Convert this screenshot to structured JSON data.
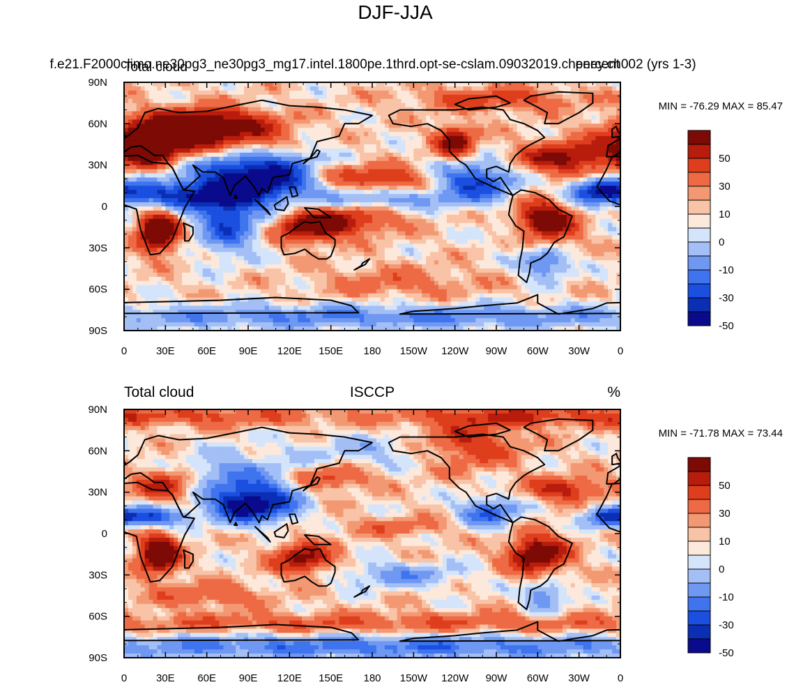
{
  "figure": {
    "title": "DJF-JJA"
  },
  "colors": {
    "palette": [
      "#0a0a8c",
      "#0a2fb4",
      "#1a4fe0",
      "#3f74ee",
      "#6f98f2",
      "#a3bff5",
      "#d4e4fa",
      "#fde9dc",
      "#f8c3a6",
      "#f29873",
      "#ed6a44",
      "#df3e1d",
      "#b81c0c",
      "#7d0a05"
    ],
    "land_outline": "#000000",
    "frame": "#000000"
  },
  "chart_data": [
    {
      "type": "heatmap",
      "id": "top",
      "title_center": "f.e21.F2000climo.ne30pg3_ne30pg3_mg17.intel.1800pe.1thrd.opt-se-cslam.09032019.cheney.ch002 (yrs 1-3)",
      "title_left": "Total cloud",
      "title_right": "percent",
      "stats_label": "MIN = -76.29 MAX =  85.47",
      "min": -76.29,
      "max": 85.47,
      "units": "%",
      "xlabel": "",
      "ylabel": "",
      "xlim": [
        0,
        360
      ],
      "ylim": [
        -90,
        90
      ],
      "x_ticks": [
        "0",
        "30E",
        "60E",
        "90E",
        "120E",
        "150E",
        "180",
        "150W",
        "120W",
        "90W",
        "60W",
        "30W",
        "0"
      ],
      "y_ticks": [
        "90N",
        "60N",
        "30N",
        "0",
        "30S",
        "60S",
        "90S"
      ],
      "levels": [
        -60,
        -50,
        -40,
        -30,
        -20,
        -10,
        -5,
        0,
        5,
        10,
        20,
        30,
        40,
        50,
        60
      ],
      "colorbar_labels": [
        "50",
        "30",
        "10",
        "0",
        "-10",
        "-30",
        "-50"
      ],
      "anomalies": [
        {
          "lon": 30,
          "lat": 50,
          "amp": 60,
          "sx": 28,
          "sy": 10
        },
        {
          "lon": 65,
          "lat": 60,
          "amp": 45,
          "sx": 30,
          "sy": 8
        },
        {
          "lon": 15,
          "lat": 40,
          "amp": 40,
          "sx": 12,
          "sy": 8
        },
        {
          "lon": 25,
          "lat": -18,
          "amp": 70,
          "sx": 10,
          "sy": 10
        },
        {
          "lon": 30,
          "lat": 8,
          "amp": -45,
          "sx": 40,
          "sy": 7
        },
        {
          "lon": 80,
          "lat": 18,
          "amp": -55,
          "sx": 25,
          "sy": 15
        },
        {
          "lon": 115,
          "lat": 25,
          "amp": -50,
          "sx": 22,
          "sy": 12
        },
        {
          "lon": 75,
          "lat": -15,
          "amp": -40,
          "sx": 15,
          "sy": 14
        },
        {
          "lon": 135,
          "lat": -15,
          "amp": 45,
          "sx": 18,
          "sy": 8
        },
        {
          "lon": 165,
          "lat": -10,
          "amp": 30,
          "sx": 25,
          "sy": 7
        },
        {
          "lon": 190,
          "lat": 20,
          "amp": 30,
          "sx": 22,
          "sy": 6
        },
        {
          "lon": 190,
          "lat": 5,
          "amp": -25,
          "sx": 35,
          "sy": 5
        },
        {
          "lon": 145,
          "lat": 25,
          "amp": 20,
          "sx": 20,
          "sy": 6
        },
        {
          "lon": 240,
          "lat": 47,
          "amp": 50,
          "sx": 10,
          "sy": 8
        },
        {
          "lon": 255,
          "lat": 18,
          "amp": -50,
          "sx": 20,
          "sy": 10
        },
        {
          "lon": 305,
          "lat": -12,
          "amp": 60,
          "sx": 15,
          "sy": 12
        },
        {
          "lon": 320,
          "lat": 35,
          "amp": 45,
          "sx": 25,
          "sy": 8
        },
        {
          "lon": 345,
          "lat": 12,
          "amp": -45,
          "sx": 15,
          "sy": 6
        },
        {
          "lon": 305,
          "lat": -40,
          "amp": -40,
          "sx": 12,
          "sy": 8
        },
        {
          "lon": 200,
          "lat": -55,
          "amp": 15,
          "sx": 40,
          "sy": 8
        },
        {
          "lon": 180,
          "lat": -80,
          "amp": -30,
          "sx": 200,
          "sy": 6
        },
        {
          "lon": 270,
          "lat": 78,
          "amp": 25,
          "sx": 40,
          "sy": 6
        },
        {
          "lon": 290,
          "lat": -20,
          "amp": -20,
          "sx": 15,
          "sy": 6
        },
        {
          "lon": 100,
          "lat": 45,
          "amp": 25,
          "sx": 20,
          "sy": 10
        }
      ]
    },
    {
      "type": "heatmap",
      "id": "bottom",
      "title_left": "Total cloud",
      "title_center": "ISCCP",
      "title_right": "%",
      "stats_label": "MIN = -71.78 MAX =  73.44",
      "min": -71.78,
      "max": 73.44,
      "units": "%",
      "xlabel": "",
      "ylabel": "",
      "xlim": [
        0,
        360
      ],
      "ylim": [
        -90,
        90
      ],
      "x_ticks": [
        "0",
        "30E",
        "60E",
        "90E",
        "120E",
        "150E",
        "180",
        "150W",
        "120W",
        "90W",
        "60W",
        "30W",
        "0"
      ],
      "y_ticks": [
        "90N",
        "60N",
        "30N",
        "0",
        "30S",
        "60S",
        "90S"
      ],
      "levels": [
        -60,
        -50,
        -40,
        -30,
        -20,
        -10,
        -5,
        0,
        5,
        10,
        20,
        30,
        40,
        50,
        60
      ],
      "colorbar_labels": [
        "50",
        "30",
        "10",
        "0",
        "-10",
        "-30",
        "-50"
      ],
      "anomalies": [
        {
          "lon": 25,
          "lat": -15,
          "amp": 65,
          "sx": 10,
          "sy": 10
        },
        {
          "lon": 85,
          "lat": 20,
          "amp": -60,
          "sx": 15,
          "sy": 8
        },
        {
          "lon": 80,
          "lat": 40,
          "amp": -30,
          "sx": 25,
          "sy": 12
        },
        {
          "lon": 20,
          "lat": 12,
          "amp": -45,
          "sx": 20,
          "sy": 5
        },
        {
          "lon": 30,
          "lat": 35,
          "amp": 35,
          "sx": 15,
          "sy": 8
        },
        {
          "lon": 130,
          "lat": -18,
          "amp": 45,
          "sx": 15,
          "sy": 8
        },
        {
          "lon": 110,
          "lat": 22,
          "amp": -35,
          "sx": 15,
          "sy": 10
        },
        {
          "lon": 150,
          "lat": 40,
          "amp": 25,
          "sx": 20,
          "sy": 6
        },
        {
          "lon": 300,
          "lat": -15,
          "amp": 55,
          "sx": 15,
          "sy": 10
        },
        {
          "lon": 265,
          "lat": 15,
          "amp": -40,
          "sx": 15,
          "sy": 8
        },
        {
          "lon": 320,
          "lat": 32,
          "amp": 35,
          "sx": 20,
          "sy": 6
        },
        {
          "lon": 350,
          "lat": 12,
          "amp": -40,
          "sx": 12,
          "sy": 5
        },
        {
          "lon": 250,
          "lat": 65,
          "amp": 30,
          "sx": 25,
          "sy": 12
        },
        {
          "lon": 280,
          "lat": 85,
          "amp": 25,
          "sx": 60,
          "sy": 5
        },
        {
          "lon": 60,
          "lat": 85,
          "amp": 20,
          "sx": 70,
          "sy": 5
        },
        {
          "lon": 200,
          "lat": -30,
          "amp": -25,
          "sx": 30,
          "sy": 6
        },
        {
          "lon": 180,
          "lat": -65,
          "amp": 20,
          "sx": 200,
          "sy": 5
        },
        {
          "lon": 180,
          "lat": -82,
          "amp": -35,
          "sx": 200,
          "sy": 6
        },
        {
          "lon": 200,
          "lat": 5,
          "amp": 15,
          "sx": 30,
          "sy": 5
        },
        {
          "lon": 60,
          "lat": -45,
          "amp": 20,
          "sx": 30,
          "sy": 6
        },
        {
          "lon": 305,
          "lat": -45,
          "amp": -30,
          "sx": 10,
          "sy": 8
        },
        {
          "lon": 180,
          "lat": 60,
          "amp": -15,
          "sx": 40,
          "sy": 8
        }
      ]
    }
  ]
}
